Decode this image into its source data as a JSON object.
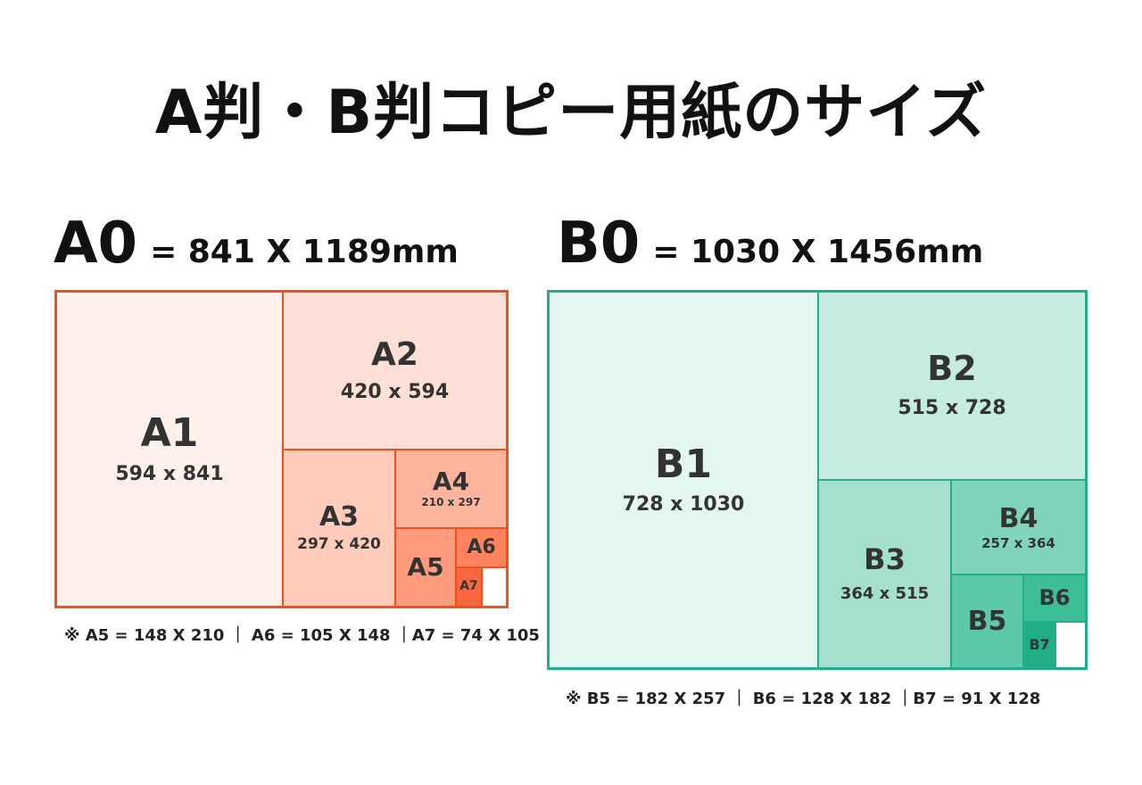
{
  "title": "A判・B判コピー用紙のサイズ",
  "a_series": {
    "name": "A0",
    "dim": "= 841 X 1189mm",
    "accent": "#f0501e",
    "a1": {
      "label": "A1",
      "size": "594 x 841",
      "color": "#fff0ec"
    },
    "a2": {
      "label": "A2",
      "size": "420 x 594",
      "color": "#ffe0d6"
    },
    "a3": {
      "label": "A3",
      "size": "297 x 420",
      "color": "#ffcbba"
    },
    "a4": {
      "label": "A4",
      "size": "210 x 297",
      "color": "#ffb49d"
    },
    "a5": {
      "label": "A5",
      "color": "#ff9c7d"
    },
    "a6": {
      "label": "A6",
      "color": "#ff845e"
    },
    "a7": {
      "label": "A7",
      "color": "#f8683e"
    },
    "note": "※ A5 = 148 X 210 ｜ A6 = 105 X 148 ｜A7 = 74 X 105"
  },
  "b_series": {
    "name": "B0",
    "dim": "= 1030 X 1456mm",
    "accent": "#1fb08a",
    "b1": {
      "label": "B1",
      "size": "728 x 1030",
      "color": "#e4f6f1"
    },
    "b2": {
      "label": "B2",
      "size": "515 x 728",
      "color": "#c6ece1"
    },
    "b3": {
      "label": "B3",
      "size": "364 x 515",
      "color": "#a5e0cf"
    },
    "b4": {
      "label": "B4",
      "size": "257 x 364",
      "color": "#80d4bc"
    },
    "b5": {
      "label": "B5",
      "color": "#5ccaaa"
    },
    "b6": {
      "label": "B6",
      "color": "#3dbd98"
    },
    "b7": {
      "label": "B7",
      "color": "#21ae87"
    },
    "note": "※ B5 = 182 X 257 ｜ B6 = 128 X 182 ｜B7 = 91 X 128"
  }
}
